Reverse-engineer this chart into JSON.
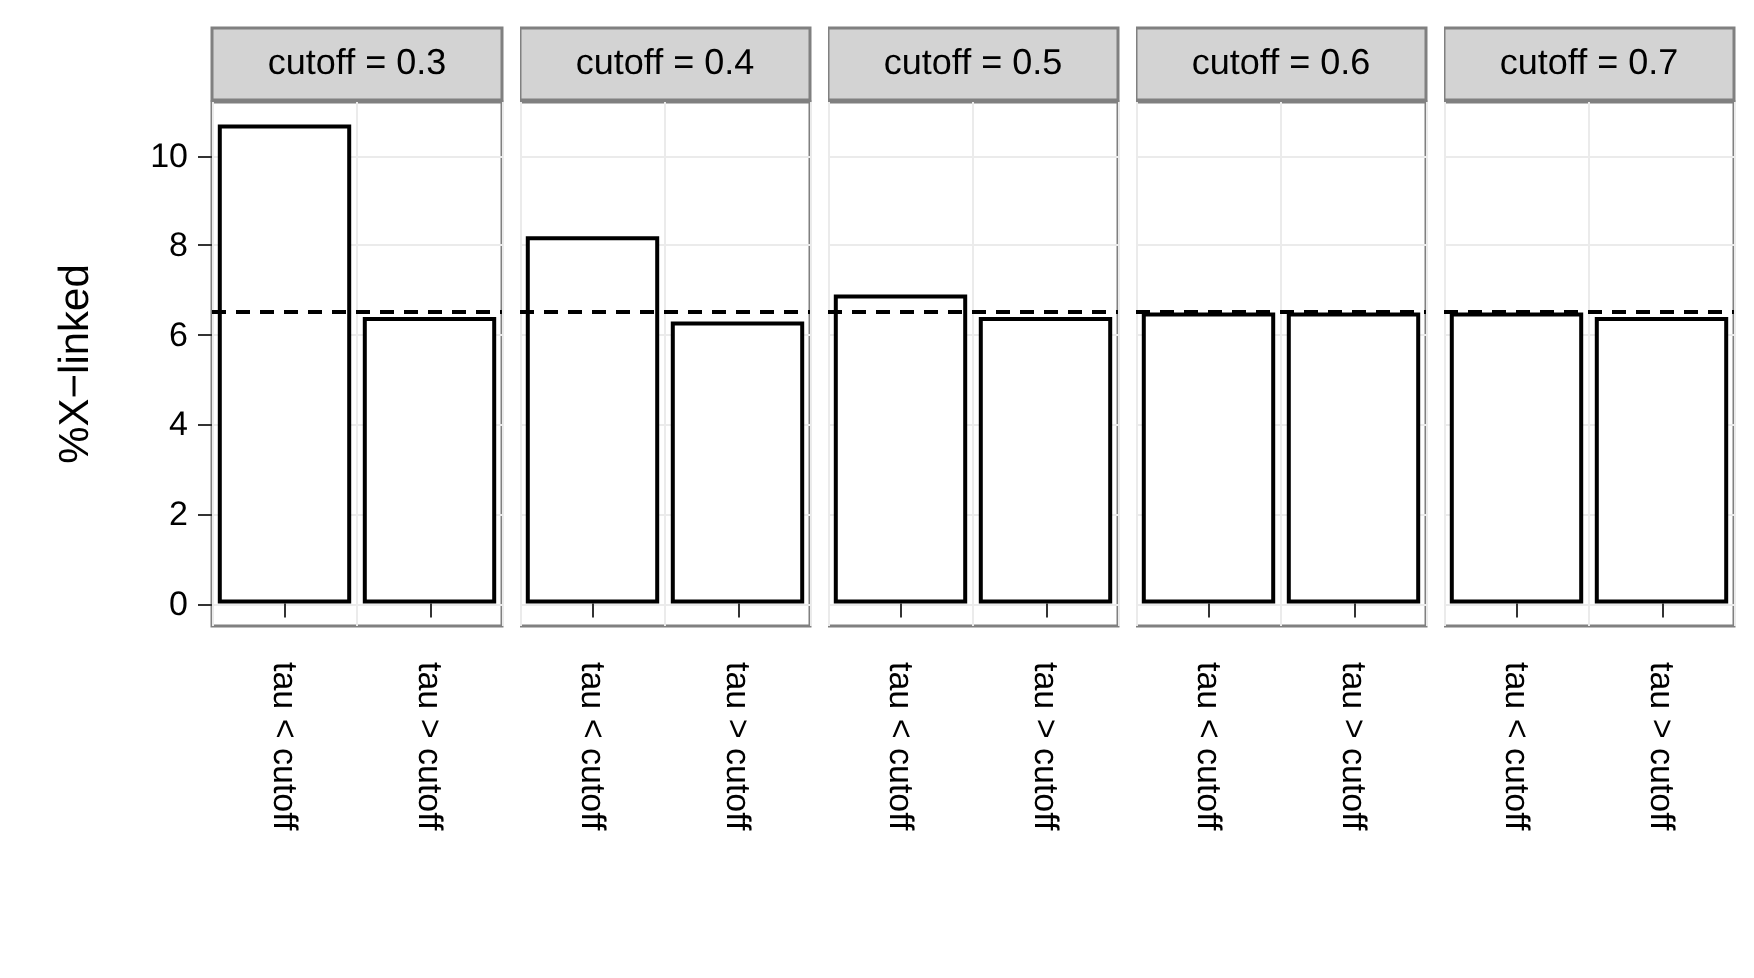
{
  "chart_data": [
    {
      "type": "bar",
      "title": "cutoff = 0.3",
      "ylabel": "%X−linked",
      "categories": [
        "tau < cutoff",
        "tau > cutoff"
      ],
      "values": [
        10.7,
        6.4
      ],
      "color": "#ffffff",
      "ylim": [
        -0.5,
        11.2
      ],
      "yticks": [
        0,
        2,
        4,
        6,
        8,
        10
      ],
      "grid": true,
      "ref_lines": [
        {
          "axis": "y",
          "value": 6.5,
          "color": "#000000",
          "line_style": "dashed"
        }
      ]
    },
    {
      "type": "bar",
      "title": "cutoff = 0.4",
      "categories": [
        "tau < cutoff",
        "tau > cutoff"
      ],
      "values": [
        8.2,
        6.3
      ],
      "color": "#ffffff",
      "ylim": [
        -0.5,
        11.2
      ],
      "yticks": [
        0,
        2,
        4,
        6,
        8,
        10
      ],
      "grid": true,
      "tick_labels": "x",
      "ref_lines": [
        {
          "axis": "y",
          "value": 6.5,
          "color": "#000000",
          "line_style": "dashed"
        }
      ]
    },
    {
      "type": "bar",
      "title": "cutoff = 0.5",
      "categories": [
        "tau < cutoff",
        "tau > cutoff"
      ],
      "values": [
        6.9,
        6.4
      ],
      "color": "#ffffff",
      "ylim": [
        -0.5,
        11.2
      ],
      "yticks": [
        0,
        2,
        4,
        6,
        8,
        10
      ],
      "grid": true,
      "tick_labels": "x",
      "ref_lines": [
        {
          "axis": "y",
          "value": 6.5,
          "color": "#000000",
          "line_style": "dashed"
        }
      ]
    },
    {
      "type": "bar",
      "title": "cutoff = 0.6",
      "categories": [
        "tau < cutoff",
        "tau > cutoff"
      ],
      "values": [
        6.5,
        6.5
      ],
      "color": "#ffffff",
      "ylim": [
        -0.5,
        11.2
      ],
      "yticks": [
        0,
        2,
        4,
        6,
        8,
        10
      ],
      "grid": true,
      "tick_labels": "x",
      "ref_lines": [
        {
          "axis": "y",
          "value": 6.5,
          "color": "#000000",
          "line_style": "dashed"
        }
      ]
    },
    {
      "type": "bar",
      "title": "cutoff = 0.7",
      "categories": [
        "tau < cutoff",
        "tau > cutoff"
      ],
      "values": [
        6.5,
        6.4
      ],
      "color": "#ffffff",
      "ylim": [
        -0.5,
        11.2
      ],
      "yticks": [
        0,
        2,
        4,
        6,
        8,
        10
      ],
      "grid": true,
      "tick_labels": "x",
      "ref_lines": [
        {
          "axis": "y",
          "value": 6.5,
          "color": "#000000",
          "line_style": "dashed"
        }
      ]
    }
  ]
}
